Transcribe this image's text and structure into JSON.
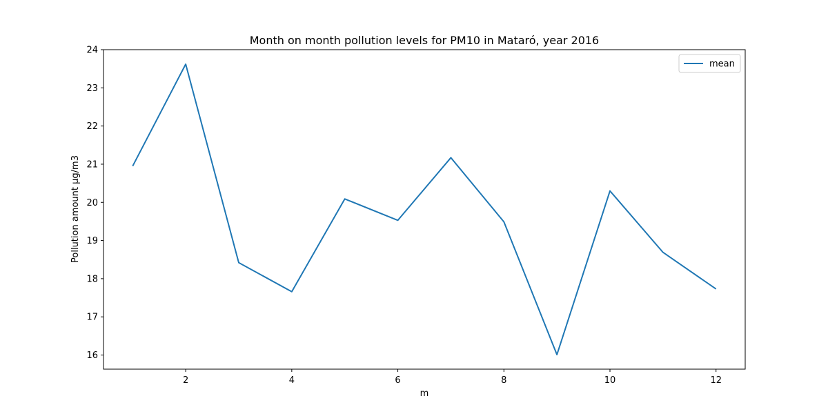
{
  "chart_data": {
    "type": "line",
    "title": "Month on month pollution levels for PM10 in Mataró, year 2016",
    "xlabel": "m",
    "ylabel": "Pollution amount µg/m3",
    "x": [
      1,
      2,
      3,
      4,
      5,
      6,
      7,
      8,
      9,
      10,
      11,
      12
    ],
    "series": [
      {
        "name": "mean",
        "color": "#1f77b4",
        "values": [
          20.95,
          23.62,
          18.42,
          17.66,
          20.09,
          19.53,
          21.17,
          19.49,
          16.01,
          20.3,
          18.69,
          17.73
        ]
      }
    ],
    "xlim": [
      0.45,
      12.55
    ],
    "ylim": [
      15.63,
      24.0
    ],
    "x_ticks": [
      2,
      4,
      6,
      8,
      10,
      12
    ],
    "y_ticks": [
      16,
      17,
      18,
      19,
      20,
      21,
      22,
      23,
      24
    ],
    "grid": false,
    "legend_position": "top-right"
  }
}
